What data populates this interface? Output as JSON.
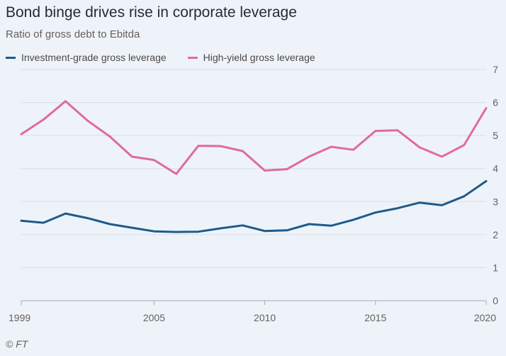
{
  "chart_data": {
    "type": "line",
    "title": "Bond binge drives rise in corporate leverage",
    "subtitle": "Ratio of gross debt to Ebitda",
    "xlabel": "",
    "ylabel": "",
    "xlim": [
      1999,
      2020
    ],
    "ylim": [
      0,
      7
    ],
    "grid": true,
    "legend_position": "top-left",
    "x_ticks": [
      1999,
      2005,
      2010,
      2015,
      2020
    ],
    "y_ticks": [
      0,
      1,
      2,
      3,
      4,
      5,
      6,
      7
    ],
    "x": [
      1999,
      2000,
      2001,
      2002,
      2003,
      2004,
      2005,
      2006,
      2007,
      2008,
      2009,
      2010,
      2011,
      2012,
      2013,
      2014,
      2015,
      2016,
      2017,
      2018,
      2019,
      2020
    ],
    "series": [
      {
        "name": "Investment-grade gross leverage",
        "color": "#1f5a8a",
        "values": [
          2.42,
          2.36,
          2.64,
          2.5,
          2.32,
          2.21,
          2.1,
          2.08,
          2.09,
          2.19,
          2.28,
          2.11,
          2.13,
          2.32,
          2.27,
          2.45,
          2.67,
          2.8,
          2.97,
          2.89,
          3.16,
          3.62
        ]
      },
      {
        "name": "High-yield gross leverage",
        "color": "#e06aa0",
        "values": [
          5.04,
          5.48,
          6.04,
          5.45,
          4.97,
          4.36,
          4.26,
          3.84,
          4.69,
          4.68,
          4.53,
          3.94,
          3.98,
          4.36,
          4.66,
          4.57,
          5.14,
          5.16,
          4.64,
          4.36,
          4.71,
          5.83
        ]
      }
    ]
  },
  "source": "© FT"
}
